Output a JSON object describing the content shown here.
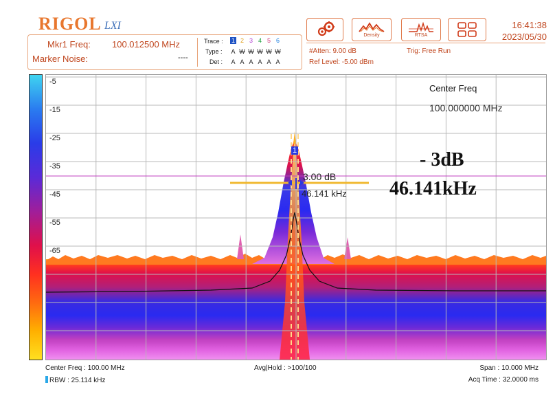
{
  "brand": {
    "logo": "RIGOL",
    "sub": "LXI"
  },
  "marker": {
    "freq_label": "Mkr1 Freq:",
    "freq_value": "100.012500 MHz",
    "noise_label": "Marker Noise:",
    "noise_value": "----"
  },
  "trace": {
    "trace_label": "Trace :",
    "type_label": "Type :",
    "det_label": "Det :",
    "numbers": [
      "1",
      "2",
      "3",
      "4",
      "5",
      "6"
    ],
    "types": [
      "A",
      "W",
      "W",
      "W",
      "W",
      "W"
    ],
    "dets": [
      "A",
      "A",
      "A",
      "A",
      "A",
      "A"
    ],
    "colors": [
      "#1f53c4",
      "#e0a020",
      "#b040d0",
      "#20a040",
      "#d04080",
      "#2080e0"
    ]
  },
  "settings": {
    "atten": "#Atten: 9.00 dB",
    "ref_level": "Ref Level: -5.00 dBm",
    "trig": "Trig: Free Run"
  },
  "toolbar": {
    "gear_icon": "gear-icon",
    "density_label": "Density",
    "rtsa_label": "RTSA",
    "layout_icon": "layout-grid-icon"
  },
  "clock": {
    "time": "16:41:38",
    "date": "2023/05/30"
  },
  "plot": {
    "y_ticks": [
      "-5",
      "-15",
      "-25",
      "-35",
      "-45",
      "-55",
      "-65"
    ],
    "center_title": "Center Freq",
    "center_value": "100.000000 MHz",
    "marker_number": "1",
    "marker_readout_db": "3.00 dB",
    "marker_readout_khz": "46.141 kHz",
    "annotation_db": "- 3dB",
    "annotation_bw": "46.141kHz"
  },
  "footer": {
    "center_freq": "Center Freq : 100.00 MHz",
    "rbw": "RBW : 25.114 kHz",
    "avg_hold": "Avg|Hold : >100/100",
    "span": "Span : 10.000 MHz",
    "acq_time": "Acq Time : 32.0000 ms"
  }
}
